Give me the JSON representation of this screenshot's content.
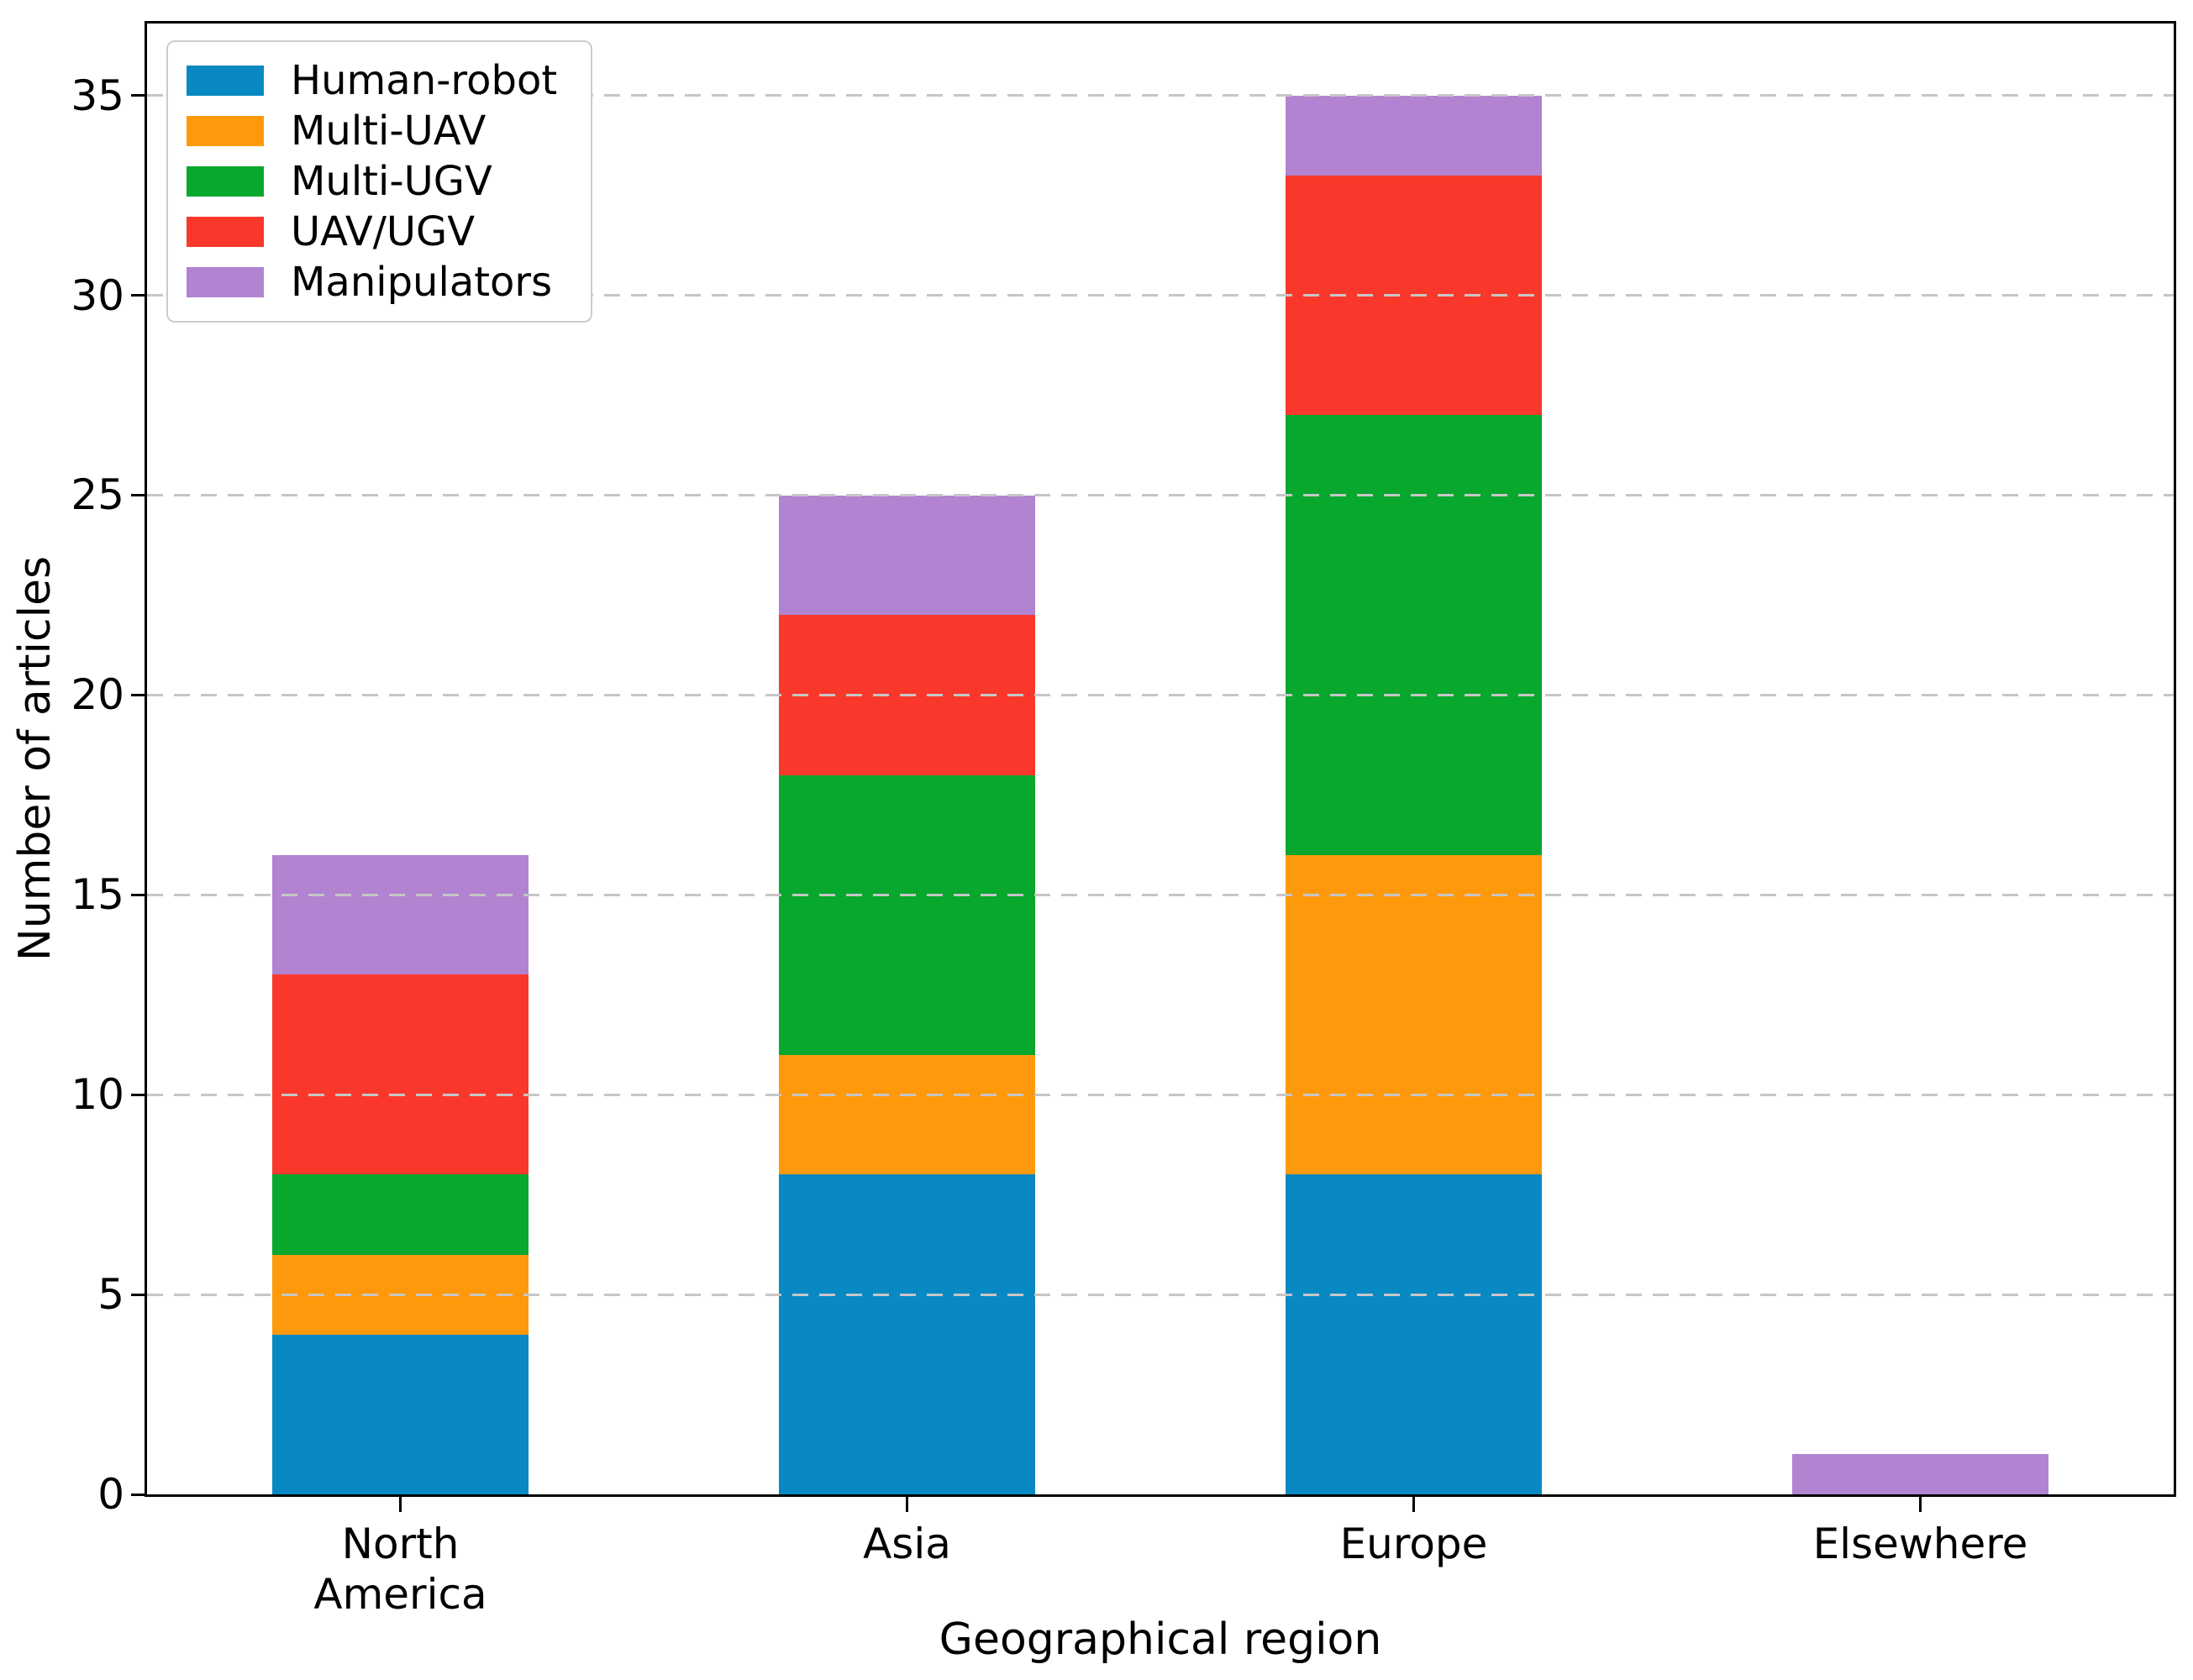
{
  "figure": {
    "xlabel": "Geographical region",
    "ylabel": "Number of articles"
  },
  "chart_data": {
    "type": "bar",
    "stacked": true,
    "title": "",
    "xlabel": "Geographical region",
    "ylabel": "Number of articles",
    "categories": [
      "North\nAmerica",
      "Asia",
      "Europe",
      "Elsewhere"
    ],
    "series": [
      {
        "name": "Human-robot",
        "color": "#0989c3",
        "values": [
          4,
          8,
          8,
          0
        ]
      },
      {
        "name": "Multi-UAV",
        "color": "#ff990c",
        "values": [
          2,
          3,
          8,
          0
        ]
      },
      {
        "name": "Multi-UGV",
        "color": "#07a82d",
        "values": [
          2,
          7,
          11,
          0
        ]
      },
      {
        "name": "UAV/UGV",
        "color": "#f9382b",
        "values": [
          5,
          4,
          6,
          0
        ]
      },
      {
        "name": "Manipulators",
        "color": "#b183d1",
        "values": [
          3,
          3,
          2,
          1
        ]
      }
    ],
    "stack_totals": [
      16,
      25,
      35,
      1
    ],
    "ylim": [
      0,
      36.8
    ],
    "yticks": [
      0,
      5,
      10,
      15,
      20,
      25,
      30,
      35
    ],
    "grid": true,
    "grid_axis": "y",
    "grid_style": "dashed",
    "legend_position": "upper left",
    "legend_entries": [
      "Human-robot",
      "Multi-UAV",
      "Multi-UGV",
      "UAV/UGV",
      "Manipulators"
    ]
  },
  "colors": {
    "grid": "#c6c6c6",
    "spine": "#000000",
    "legend_border": "#cccccc",
    "background": "#ffffff"
  }
}
